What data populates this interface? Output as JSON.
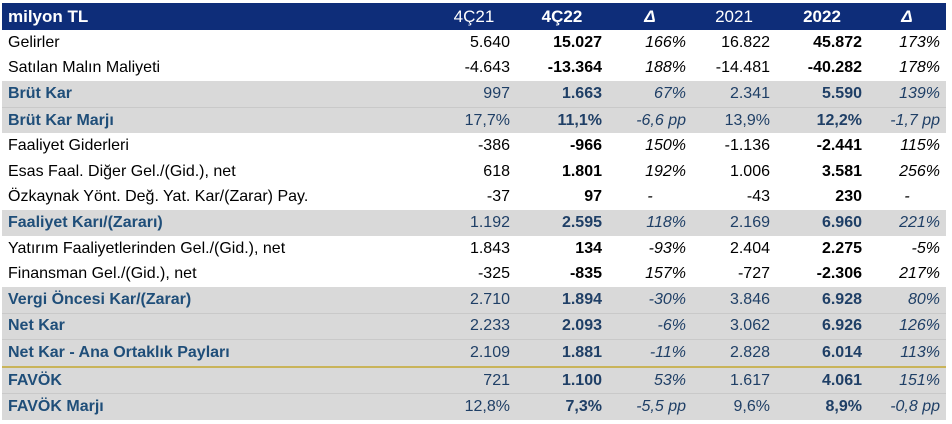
{
  "header": {
    "label": "milyon TL",
    "c1": "4Ç21",
    "c2": "4Ç22",
    "c3": "Δ",
    "c4": "2021",
    "c5": "2022",
    "c6": "Δ"
  },
  "rows": [
    {
      "label": "Gelirler",
      "c1": "5.640",
      "c2": "15.027",
      "c3": "166%",
      "c4": "16.822",
      "c5": "45.872",
      "c6": "173%"
    },
    {
      "label": "Satılan Malın Maliyeti",
      "c1": "-4.643",
      "c2": "-13.364",
      "c3": "188%",
      "c4": "-14.481",
      "c5": "-40.282",
      "c6": "178%"
    },
    {
      "label": "Brüt Kar",
      "c1": "997",
      "c2": "1.663",
      "c3": "67%",
      "c4": "2.341",
      "c5": "5.590",
      "c6": "139%"
    },
    {
      "label": "Brüt Kar Marjı",
      "c1": "17,7%",
      "c2": "11,1%",
      "c3": "-6,6 pp",
      "c4": "13,9%",
      "c5": "12,2%",
      "c6": "-1,7 pp"
    },
    {
      "label": "Faaliyet Giderleri",
      "c1": "-386",
      "c2": "-966",
      "c3": "150%",
      "c4": "-1.136",
      "c5": "-2.441",
      "c6": "115%"
    },
    {
      "label": "Esas Faal. Diğer Gel./(Gid.), net",
      "c1": "618",
      "c2": "1.801",
      "c3": "192%",
      "c4": "1.006",
      "c5": "3.581",
      "c6": "256%"
    },
    {
      "label": "Özkaynak Yönt. Değ. Yat. Kar/(Zarar) Pay.",
      "c1": "-37",
      "c2": "97",
      "c3": "-",
      "c4": "-43",
      "c5": "230",
      "c6": "-"
    },
    {
      "label": "Faaliyet Karı/(Zararı)",
      "c1": "1.192",
      "c2": "2.595",
      "c3": "118%",
      "c4": "2.169",
      "c5": "6.960",
      "c6": "221%"
    },
    {
      "label": "Yatırım Faaliyetlerinden Gel./(Gid.), net",
      "c1": "1.843",
      "c2": "134",
      "c3": "-93%",
      "c4": "2.404",
      "c5": "2.275",
      "c6": "-5%"
    },
    {
      "label": "Finansman Gel./(Gid.), net",
      "c1": "-325",
      "c2": "-835",
      "c3": "157%",
      "c4": "-727",
      "c5": "-2.306",
      "c6": "217%"
    },
    {
      "label": "Vergi Öncesi Kar/(Zarar)",
      "c1": "2.710",
      "c2": "1.894",
      "c3": "-30%",
      "c4": "3.846",
      "c5": "6.928",
      "c6": "80%"
    },
    {
      "label": "Net Kar",
      "c1": "2.233",
      "c2": "2.093",
      "c3": "-6%",
      "c4": "3.062",
      "c5": "6.926",
      "c6": "126%"
    },
    {
      "label": "Net Kar - Ana Ortaklık Payları",
      "c1": "2.109",
      "c2": "1.881",
      "c3": "-11%",
      "c4": "2.828",
      "c5": "6.014",
      "c6": "113%"
    },
    {
      "label": "FAVÖK",
      "c1": "721",
      "c2": "1.100",
      "c3": "53%",
      "c4": "1.617",
      "c5": "4.061",
      "c6": "151%"
    },
    {
      "label": "FAVÖK Marjı",
      "c1": "12,8%",
      "c2": "7,3%",
      "c3": "-5,5 pp",
      "c4": "9,6%",
      "c5": "8,9%",
      "c6": "-0,8 pp"
    }
  ],
  "colors": {
    "header_bg": "#0e2d79",
    "highlight_bg": "#d9d9d9",
    "highlight_text": "#1f4e79",
    "separator_gold": "#c9b45a"
  }
}
